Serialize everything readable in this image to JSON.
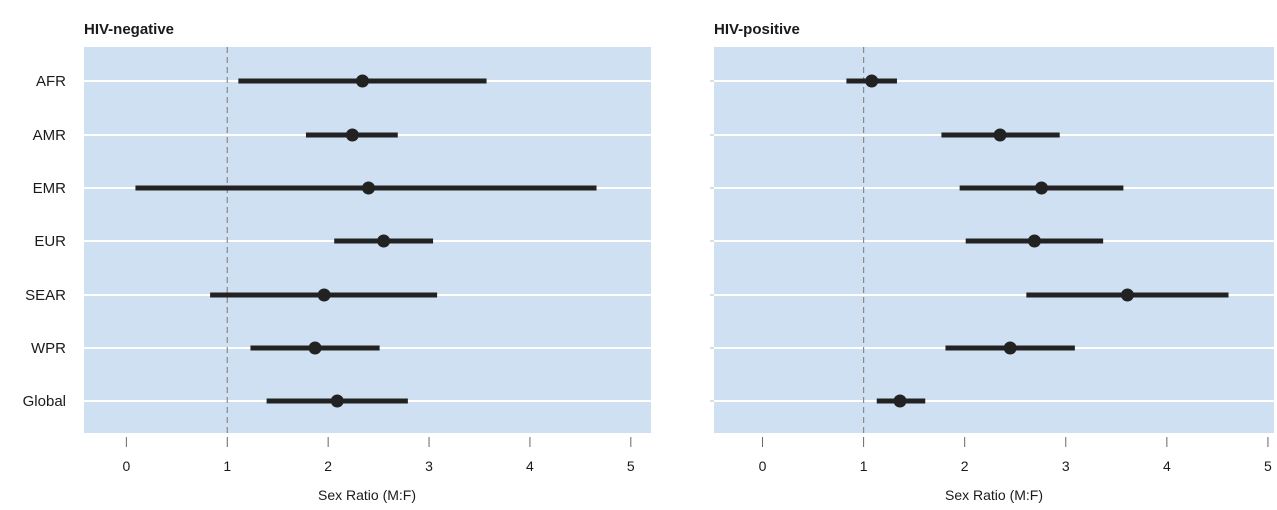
{
  "chart_data": [
    {
      "type": "forest",
      "title": "HIV-negative",
      "xlabel": "Sex Ratio (M:F)",
      "categories": [
        "AFR",
        "AMR",
        "EMR",
        "EUR",
        "SEAR",
        "WPR",
        "Global"
      ],
      "xticks": [
        "0",
        "1",
        "2",
        "3",
        "4",
        "5"
      ],
      "xlim": [
        -0.42,
        5.2
      ],
      "reference_line": 1,
      "estimates": [
        2.34,
        2.24,
        2.4,
        2.55,
        1.96,
        1.87,
        2.09
      ],
      "lower": [
        1.11,
        1.78,
        0.09,
        2.06,
        0.83,
        1.23,
        1.39
      ],
      "upper": [
        3.57,
        2.69,
        4.66,
        3.04,
        3.08,
        2.51,
        2.79
      ],
      "grid": true,
      "background": "#d0e0f3",
      "gridline_color": "#ffffff",
      "mark_color": "#222222"
    },
    {
      "type": "forest",
      "title": "HIV-positive",
      "xlabel": "Sex Ratio (M:F)",
      "categories": [
        "AFR",
        "AMR",
        "EMR",
        "EUR",
        "SEAR",
        "WPR",
        "Global"
      ],
      "xticks": [
        "0",
        "1",
        "2",
        "3",
        "4",
        "5"
      ],
      "xlim": [
        -0.48,
        5.06
      ],
      "reference_line": 1,
      "estimates": [
        1.08,
        2.35,
        2.76,
        2.69,
        3.61,
        2.45,
        1.36
      ],
      "lower": [
        0.83,
        1.77,
        1.95,
        2.01,
        2.61,
        1.81,
        1.13
      ],
      "upper": [
        1.33,
        2.94,
        3.57,
        3.37,
        4.61,
        3.09,
        1.61
      ],
      "grid": true,
      "background": "#d0e0f3",
      "gridline_color": "#ffffff",
      "mark_color": "#222222"
    }
  ]
}
